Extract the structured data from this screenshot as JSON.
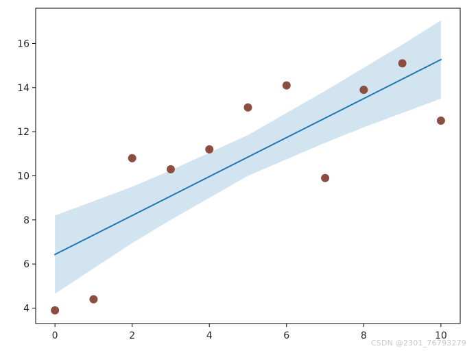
{
  "chart_data": {
    "type": "scatter",
    "title": "",
    "xlabel": "",
    "ylabel": "",
    "xlim": [
      -0.5,
      10.5
    ],
    "ylim": [
      3.3,
      17.6
    ],
    "xticks": [
      0,
      2,
      4,
      6,
      8,
      10
    ],
    "yticks": [
      4,
      6,
      8,
      10,
      12,
      14,
      16
    ],
    "grid": false,
    "scatter": {
      "color": "#8c4e40",
      "x": [
        0,
        1,
        2,
        3,
        4,
        5,
        6,
        7,
        8,
        9,
        10
      ],
      "y": [
        3.9,
        4.4,
        10.8,
        10.3,
        11.2,
        13.1,
        14.1,
        9.9,
        13.9,
        15.1,
        12.5
      ]
    },
    "fit_line": {
      "color": "#1f77b4",
      "x": [
        0,
        10
      ],
      "y": [
        6.43,
        15.27
      ]
    },
    "confidence_band": {
      "color": "#1f77b4",
      "x": [
        0,
        1,
        2,
        3,
        4,
        5,
        6,
        7,
        8,
        9,
        10
      ],
      "lower": [
        4.65,
        5.8,
        6.95,
        8.0,
        9.0,
        10.0,
        10.75,
        11.5,
        12.2,
        12.85,
        13.5
      ],
      "upper": [
        8.2,
        8.85,
        9.5,
        10.25,
        11.05,
        11.85,
        12.85,
        13.85,
        14.9,
        15.95,
        17.05
      ]
    }
  },
  "watermark": "CSDN @2301_76793279"
}
